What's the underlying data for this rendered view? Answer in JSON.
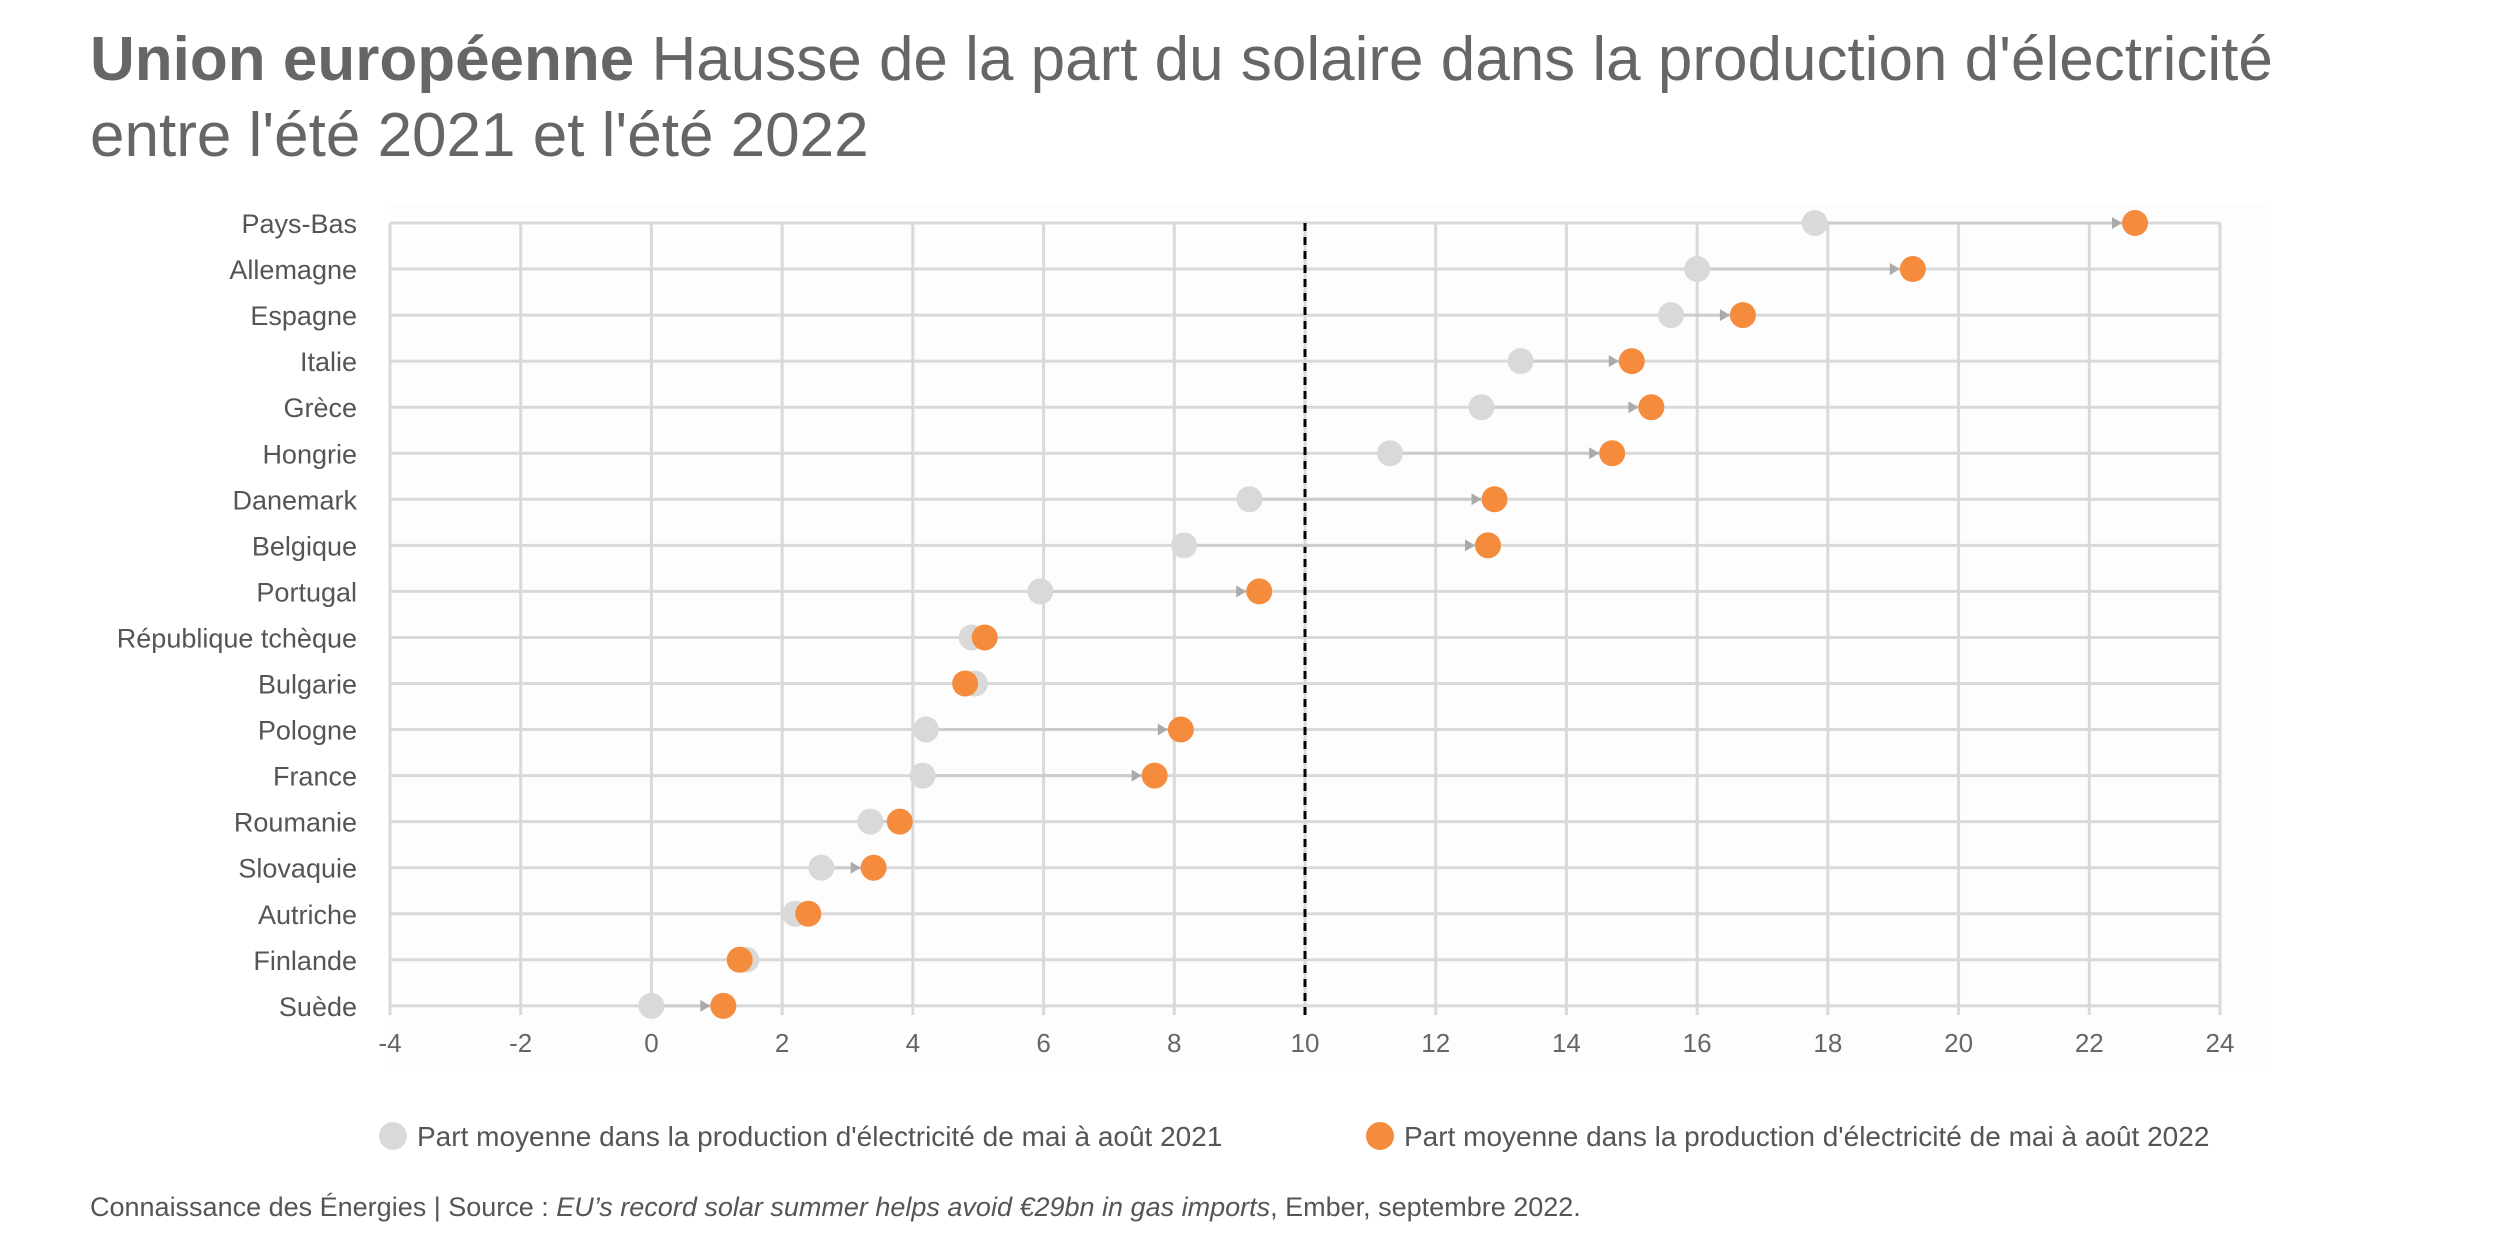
{
  "header": {
    "title_bold": "Union européenne",
    "title_rest": "Hausse de la part du solaire dans la production d'électricité entre l'été 2021 et l'été 2022"
  },
  "footer": {
    "source_prefix": "Connaissance des Énergies | Source : ",
    "source_italic": "EU’s record solar summer helps avoid €29bn in gas imports",
    "source_suffix": ", Ember, septembre 2022."
  },
  "colors": {
    "series_2021": "#d9d9d9",
    "series_2022": "#f58c3d",
    "connector": "#cccccc",
    "grid": "#d9d9d9",
    "reference_line": "#000000",
    "tick_text": "#666666",
    "label_text": "#555555"
  },
  "chart_data": {
    "type": "scatter",
    "style": "dumbbell",
    "categories": [
      "Pays-Bas",
      "Allemagne",
      "Espagne",
      "Italie",
      "Grèce",
      "Hongrie",
      "Danemark",
      "Belgique",
      "Portugal",
      "République tchèque",
      "Bulgarie",
      "Pologne",
      "France",
      "Roumanie",
      "Slovaquie",
      "Autriche",
      "Finlande",
      "Suède"
    ],
    "series": [
      {
        "name": "Part moyenne dans la production d'électricité de mai à août 2021",
        "values": [
          17.8,
          16.0,
          15.6,
          13.3,
          12.7,
          11.3,
          9.15,
          8.15,
          5.95,
          4.9,
          4.95,
          4.2,
          4.15,
          3.35,
          2.6,
          2.2,
          1.45,
          0.0
        ]
      },
      {
        "name": "Part moyenne dans la production d'électricité de mai à août 2022",
        "values": [
          22.7,
          19.3,
          16.7,
          15.0,
          15.3,
          14.7,
          12.9,
          12.8,
          9.3,
          5.1,
          4.8,
          8.1,
          7.7,
          3.8,
          3.4,
          2.4,
          1.35,
          1.1
        ]
      }
    ],
    "xlim": [
      -4,
      24
    ],
    "x_ticks": [
      "-4",
      "-2",
      "0",
      "2",
      "4",
      "6",
      "8",
      "10",
      "12",
      "14",
      "16",
      "18",
      "20",
      "22",
      "24"
    ],
    "reference_line_x": 10,
    "grid": true,
    "legend_position": "bottom",
    "xlabel": "",
    "ylabel": ""
  }
}
